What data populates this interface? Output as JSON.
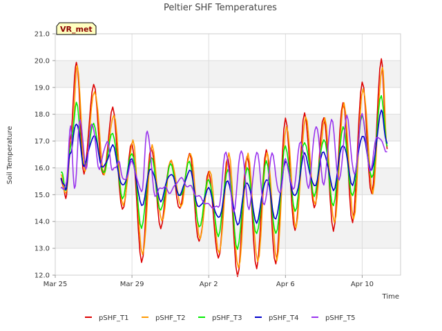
{
  "chart_data": {
    "type": "line",
    "title": "Peltier SHF Temperatures",
    "xlabel": "Time",
    "ylabel": "Soil Temperature",
    "badge": "VR_met",
    "ylim": [
      12.0,
      21.0
    ],
    "xlim_days": [
      0,
      18
    ],
    "y_ticks": [
      "12.0",
      "13.0",
      "14.0",
      "15.0",
      "16.0",
      "17.0",
      "18.0",
      "19.0",
      "20.0",
      "21.0"
    ],
    "x_ticks": [
      {
        "day": 0,
        "label": "Mar 25"
      },
      {
        "day": 4,
        "label": "Mar 29"
      },
      {
        "day": 8,
        "label": "Apr 2"
      },
      {
        "day": 12,
        "label": "Apr 6"
      },
      {
        "day": 16,
        "label": "Apr 10"
      }
    ],
    "grid": true,
    "legend_position": "bottom",
    "series": [
      {
        "name": "pSHF_T1",
        "color": "#dd0000",
        "points": [
          [
            0.3,
            15.6
          ],
          [
            0.55,
            14.9
          ],
          [
            0.8,
            17.2
          ],
          [
            1.1,
            20.0
          ],
          [
            1.5,
            15.8
          ],
          [
            2.0,
            19.1
          ],
          [
            2.5,
            15.7
          ],
          [
            3.0,
            18.2
          ],
          [
            3.5,
            14.4
          ],
          [
            4.0,
            16.9
          ],
          [
            4.5,
            12.5
          ],
          [
            5.0,
            16.8
          ],
          [
            5.5,
            13.8
          ],
          [
            6.0,
            16.3
          ],
          [
            6.5,
            14.5
          ],
          [
            7.0,
            16.5
          ],
          [
            7.5,
            13.2
          ],
          [
            8.0,
            15.8
          ],
          [
            8.5,
            12.6
          ],
          [
            9.0,
            16.4
          ],
          [
            9.5,
            12.0
          ],
          [
            10.0,
            16.5
          ],
          [
            10.5,
            12.3
          ],
          [
            11.0,
            16.7
          ],
          [
            11.5,
            12.4
          ],
          [
            12.0,
            17.8
          ],
          [
            12.5,
            13.6
          ],
          [
            13.0,
            18.0
          ],
          [
            13.5,
            14.5
          ],
          [
            14.0,
            17.9
          ],
          [
            14.5,
            13.7
          ],
          [
            15.0,
            18.5
          ],
          [
            15.5,
            14.0
          ],
          [
            16.0,
            19.2
          ],
          [
            16.5,
            15.0
          ],
          [
            17.0,
            20.0
          ],
          [
            17.3,
            16.7
          ]
        ]
      },
      {
        "name": "pSHF_T2",
        "color": "#ff9900",
        "points": [
          [
            0.3,
            15.7
          ],
          [
            0.55,
            15.0
          ],
          [
            0.85,
            17.0
          ],
          [
            1.15,
            19.8
          ],
          [
            1.55,
            15.9
          ],
          [
            2.05,
            18.9
          ],
          [
            2.55,
            15.8
          ],
          [
            3.05,
            18.0
          ],
          [
            3.55,
            14.6
          ],
          [
            4.05,
            17.0
          ],
          [
            4.55,
            12.7
          ],
          [
            5.05,
            16.8
          ],
          [
            5.55,
            14.0
          ],
          [
            6.05,
            16.3
          ],
          [
            6.55,
            14.6
          ],
          [
            7.05,
            16.6
          ],
          [
            7.55,
            13.4
          ],
          [
            8.05,
            15.9
          ],
          [
            8.55,
            12.8
          ],
          [
            9.05,
            16.5
          ],
          [
            9.55,
            12.2
          ],
          [
            10.05,
            16.5
          ],
          [
            10.55,
            12.5
          ],
          [
            11.05,
            16.6
          ],
          [
            11.55,
            12.6
          ],
          [
            12.05,
            17.6
          ],
          [
            12.55,
            13.8
          ],
          [
            13.05,
            17.9
          ],
          [
            13.55,
            14.6
          ],
          [
            14.05,
            17.8
          ],
          [
            14.55,
            13.9
          ],
          [
            15.05,
            18.4
          ],
          [
            15.55,
            14.1
          ],
          [
            16.05,
            19.0
          ],
          [
            16.55,
            15.1
          ],
          [
            17.05,
            19.8
          ],
          [
            17.3,
            16.8
          ]
        ]
      },
      {
        "name": "pSHF_T3",
        "color": "#00ee00",
        "points": [
          [
            0.3,
            15.9
          ],
          [
            0.55,
            15.2
          ],
          [
            0.8,
            16.8
          ],
          [
            1.1,
            18.4
          ],
          [
            1.5,
            16.0
          ],
          [
            2.0,
            17.6
          ],
          [
            2.5,
            15.8
          ],
          [
            3.0,
            17.3
          ],
          [
            3.5,
            14.9
          ],
          [
            4.0,
            16.6
          ],
          [
            4.5,
            13.8
          ],
          [
            5.0,
            16.4
          ],
          [
            5.5,
            14.4
          ],
          [
            6.0,
            16.1
          ],
          [
            6.5,
            14.9
          ],
          [
            7.0,
            16.2
          ],
          [
            7.5,
            13.8
          ],
          [
            8.0,
            15.6
          ],
          [
            8.5,
            13.5
          ],
          [
            9.0,
            16.0
          ],
          [
            9.5,
            13.0
          ],
          [
            10.0,
            16.0
          ],
          [
            10.5,
            13.5
          ],
          [
            11.0,
            16.2
          ],
          [
            11.5,
            13.5
          ],
          [
            12.0,
            16.8
          ],
          [
            12.5,
            14.4
          ],
          [
            13.0,
            17.0
          ],
          [
            13.5,
            15.0
          ],
          [
            14.0,
            17.1
          ],
          [
            14.5,
            14.6
          ],
          [
            15.0,
            17.5
          ],
          [
            15.5,
            14.9
          ],
          [
            16.0,
            17.9
          ],
          [
            16.5,
            15.6
          ],
          [
            17.0,
            18.7
          ],
          [
            17.3,
            16.8
          ]
        ]
      },
      {
        "name": "pSHF_T4",
        "color": "#0000cc",
        "points": [
          [
            0.3,
            15.6
          ],
          [
            0.55,
            15.2
          ],
          [
            0.8,
            16.6
          ],
          [
            1.1,
            17.7
          ],
          [
            1.5,
            16.1
          ],
          [
            2.0,
            17.2
          ],
          [
            2.5,
            16.0
          ],
          [
            3.0,
            16.8
          ],
          [
            3.5,
            15.3
          ],
          [
            4.0,
            16.3
          ],
          [
            4.5,
            14.6
          ],
          [
            5.0,
            16.0
          ],
          [
            5.5,
            14.8
          ],
          [
            6.0,
            15.8
          ],
          [
            6.5,
            15.0
          ],
          [
            7.0,
            15.9
          ],
          [
            7.5,
            14.5
          ],
          [
            8.0,
            15.2
          ],
          [
            8.5,
            14.1
          ],
          [
            9.0,
            15.5
          ],
          [
            9.5,
            13.9
          ],
          [
            10.0,
            15.5
          ],
          [
            10.5,
            14.0
          ],
          [
            11.0,
            15.6
          ],
          [
            11.5,
            14.1
          ],
          [
            12.0,
            16.2
          ],
          [
            12.5,
            14.9
          ],
          [
            13.0,
            16.5
          ],
          [
            13.5,
            15.3
          ],
          [
            14.0,
            16.6
          ],
          [
            14.5,
            15.2
          ],
          [
            15.0,
            16.9
          ],
          [
            15.5,
            15.4
          ],
          [
            16.0,
            17.2
          ],
          [
            16.5,
            15.9
          ],
          [
            17.0,
            18.1
          ],
          [
            17.3,
            16.9
          ]
        ]
      },
      {
        "name": "pSHF_T5",
        "color": "#9933ee",
        "points": [
          [
            0.3,
            15.2
          ],
          [
            0.55,
            15.3
          ],
          [
            0.8,
            17.5
          ],
          [
            1.0,
            15.2
          ],
          [
            1.3,
            17.8
          ],
          [
            1.6,
            16.0
          ],
          [
            1.9,
            17.7
          ],
          [
            2.3,
            16.0
          ],
          [
            2.7,
            17.0
          ],
          [
            3.0,
            15.9
          ],
          [
            3.3,
            16.2
          ],
          [
            3.6,
            15.5
          ],
          [
            4.0,
            16.2
          ],
          [
            4.5,
            15.1
          ],
          [
            4.8,
            17.4
          ],
          [
            5.2,
            15.0
          ],
          [
            5.6,
            15.3
          ],
          [
            6.0,
            15.1
          ],
          [
            6.5,
            15.6
          ],
          [
            7.0,
            15.3
          ],
          [
            7.5,
            14.9
          ],
          [
            8.0,
            14.6
          ],
          [
            8.5,
            14.5
          ],
          [
            8.9,
            16.6
          ],
          [
            9.3,
            14.4
          ],
          [
            9.7,
            16.7
          ],
          [
            10.1,
            14.5
          ],
          [
            10.5,
            16.6
          ],
          [
            10.9,
            14.6
          ],
          [
            11.3,
            16.5
          ],
          [
            11.7,
            15.0
          ],
          [
            12.0,
            16.3
          ],
          [
            12.4,
            15.2
          ],
          [
            12.8,
            17.0
          ],
          [
            13.2,
            15.3
          ],
          [
            13.6,
            17.6
          ],
          [
            14.0,
            15.4
          ],
          [
            14.4,
            17.8
          ],
          [
            14.8,
            15.5
          ],
          [
            15.2,
            17.9
          ],
          [
            15.6,
            15.7
          ],
          [
            16.0,
            18.0
          ],
          [
            16.4,
            15.9
          ],
          [
            16.8,
            17.2
          ],
          [
            17.3,
            16.6
          ]
        ]
      }
    ]
  }
}
